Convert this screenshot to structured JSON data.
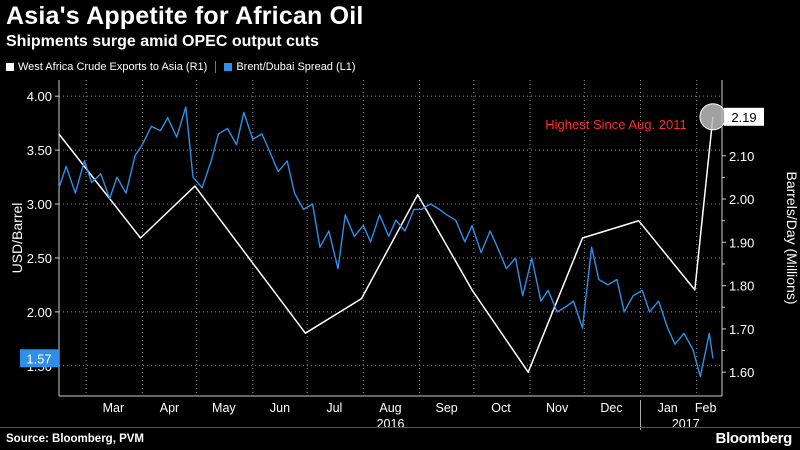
{
  "header": {
    "title": "Asia's Appetite for African Oil",
    "subtitle": "Shipments surge amid OPEC output cuts"
  },
  "legend": [
    {
      "label": "West Africa Crude Exports to Asia (R1)",
      "color": "#ffffff"
    },
    {
      "label": "Brent/Dubai Spread (L1)",
      "color": "#2f8fe8"
    }
  ],
  "footer": {
    "source": "Source: Bloomberg, PVM",
    "brand": "Bloomberg"
  },
  "chart_data": {
    "type": "line",
    "ylabel_left": "USD/Barrel",
    "ylabel_right": "Barrels/Day (Millions)",
    "yleft_range": [
      1.22,
      4.15
    ],
    "yright_range": [
      1.545,
      2.275
    ],
    "yleft_ticks": [
      "1.50",
      "2.00",
      "2.50",
      "3.00",
      "3.50",
      "4.00"
    ],
    "yright_ticks": [
      "1.60",
      "1.70",
      "1.80",
      "1.90",
      "2.00",
      "2.10"
    ],
    "x_range": [
      "2016-02-15",
      "2017-02-15"
    ],
    "month_ticks": [
      "Mar",
      "Apr",
      "May",
      "Jun",
      "Jul",
      "Aug",
      "Sep",
      "Oct",
      "Nov",
      "Dec",
      "Jan",
      "Feb"
    ],
    "year_labels": [
      "2016",
      "2017"
    ],
    "grid": true,
    "annotation": {
      "text": "Highest Since Aug. 2011",
      "color": "#ff2a2a"
    },
    "last_value_labels": {
      "left": "1.57",
      "right": "2.19"
    },
    "series": [
      {
        "name": "West Africa Crude Exports to Asia (R1)",
        "axis": "right",
        "color": "#ffffff",
        "x": [
          "2016-02-15",
          "2016-03-31",
          "2016-04-30",
          "2016-06-30",
          "2016-07-31",
          "2016-08-31",
          "2016-09-30",
          "2016-10-31",
          "2016-11-30",
          "2016-12-31",
          "2017-01-31",
          "2017-02-10"
        ],
        "values": [
          2.15,
          1.91,
          2.03,
          1.69,
          1.77,
          2.01,
          1.79,
          1.6,
          1.91,
          1.95,
          1.79,
          2.19
        ]
      },
      {
        "name": "Brent/Dubai Spread (L1)",
        "axis": "left",
        "color": "#2f8fe8",
        "x": [
          "2016-02-15",
          "2016-02-19",
          "2016-02-24",
          "2016-02-29",
          "2016-03-04",
          "2016-03-09",
          "2016-03-14",
          "2016-03-18",
          "2016-03-23",
          "2016-03-28",
          "2016-04-01",
          "2016-04-06",
          "2016-04-11",
          "2016-04-15",
          "2016-04-20",
          "2016-04-25",
          "2016-04-29",
          "2016-05-04",
          "2016-05-09",
          "2016-05-13",
          "2016-05-18",
          "2016-05-23",
          "2016-05-27",
          "2016-06-01",
          "2016-06-06",
          "2016-06-10",
          "2016-06-15",
          "2016-06-20",
          "2016-06-24",
          "2016-06-29",
          "2016-07-04",
          "2016-07-08",
          "2016-07-13",
          "2016-07-18",
          "2016-07-22",
          "2016-07-27",
          "2016-08-01",
          "2016-08-05",
          "2016-08-10",
          "2016-08-15",
          "2016-08-19",
          "2016-08-24",
          "2016-08-29",
          "2016-09-02",
          "2016-09-07",
          "2016-09-12",
          "2016-09-16",
          "2016-09-21",
          "2016-09-26",
          "2016-09-30",
          "2016-10-05",
          "2016-10-10",
          "2016-10-14",
          "2016-10-19",
          "2016-10-24",
          "2016-10-28",
          "2016-11-02",
          "2016-11-07",
          "2016-11-11",
          "2016-11-16",
          "2016-11-21",
          "2016-11-25",
          "2016-11-30",
          "2016-12-05",
          "2016-12-09",
          "2016-12-14",
          "2016-12-19",
          "2016-12-23",
          "2016-12-28",
          "2017-01-02",
          "2017-01-06",
          "2017-01-11",
          "2017-01-16",
          "2017-01-20",
          "2017-01-25",
          "2017-01-30",
          "2017-02-03",
          "2017-02-08",
          "2017-02-10"
        ],
        "values": [
          3.15,
          3.35,
          3.1,
          3.4,
          3.2,
          3.28,
          3.05,
          3.25,
          3.1,
          3.45,
          3.55,
          3.72,
          3.68,
          3.8,
          3.62,
          3.9,
          3.25,
          3.15,
          3.4,
          3.65,
          3.7,
          3.55,
          3.85,
          3.6,
          3.65,
          3.5,
          3.3,
          3.4,
          3.1,
          2.95,
          3.0,
          2.6,
          2.75,
          2.4,
          2.9,
          2.7,
          2.8,
          2.65,
          2.9,
          2.7,
          2.85,
          2.75,
          2.95,
          2.95,
          3.0,
          2.95,
          2.9,
          2.85,
          2.65,
          2.8,
          2.55,
          2.75,
          2.6,
          2.4,
          2.5,
          2.15,
          2.5,
          2.1,
          2.2,
          2.0,
          2.05,
          2.1,
          1.85,
          2.6,
          2.3,
          2.25,
          2.3,
          2.0,
          2.15,
          2.2,
          2.0,
          2.1,
          1.85,
          1.7,
          1.8,
          1.65,
          1.4,
          1.8,
          1.57
        ]
      }
    ]
  }
}
